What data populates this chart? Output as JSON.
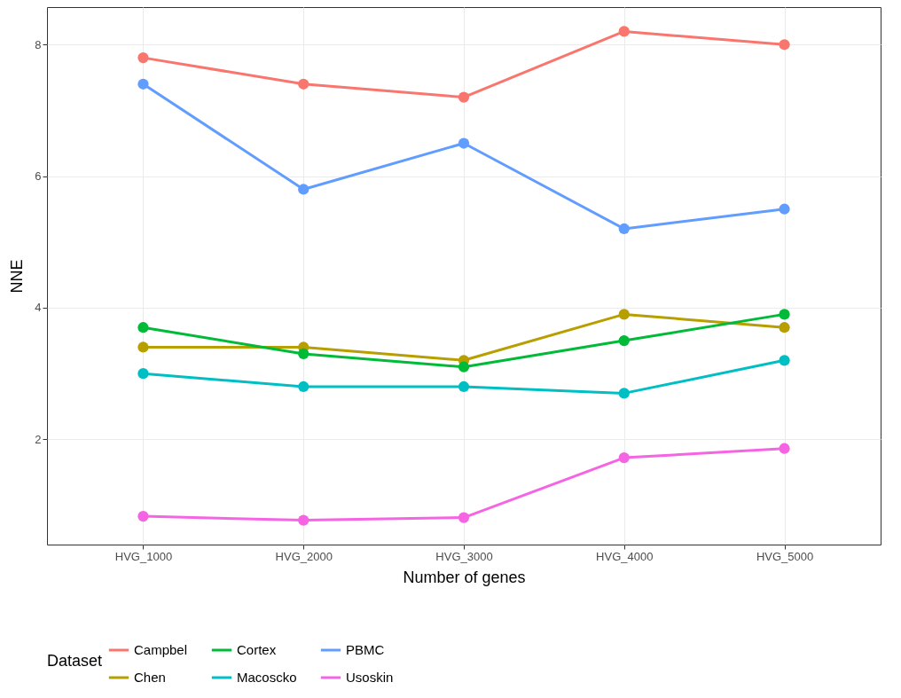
{
  "chart_data": {
    "type": "line",
    "xlabel": "Number of genes",
    "ylabel": "NNE",
    "legend_title": "Dataset",
    "legend": "bottom",
    "grid": true,
    "marker": "circle",
    "line_style": "solid",
    "categories": [
      "HVG_1000",
      "HVG_2000",
      "HVG_3000",
      "HVG_4000",
      "HVG_5000"
    ],
    "ylim": [
      0.4,
      8.57
    ],
    "yticks": [
      2,
      4,
      6,
      8
    ],
    "series": [
      {
        "name": "Campbel",
        "color": "#f8766d",
        "values": [
          7.8,
          7.4,
          7.2,
          8.2,
          8.0
        ]
      },
      {
        "name": "Chen",
        "color": "#b79f00",
        "values": [
          3.4,
          3.4,
          3.2,
          3.9,
          3.7
        ]
      },
      {
        "name": "Cortex",
        "color": "#00ba38",
        "values": [
          3.7,
          3.3,
          3.1,
          3.5,
          3.9
        ]
      },
      {
        "name": "Macoscko",
        "color": "#00bfc4",
        "values": [
          3.0,
          2.8,
          2.8,
          2.7,
          3.2
        ]
      },
      {
        "name": "PBMC",
        "color": "#619cff",
        "values": [
          7.4,
          5.8,
          6.5,
          5.2,
          5.5
        ]
      },
      {
        "name": "Usoskin",
        "color": "#f564e3",
        "values": [
          0.83,
          0.77,
          0.81,
          1.72,
          1.86
        ]
      }
    ]
  }
}
